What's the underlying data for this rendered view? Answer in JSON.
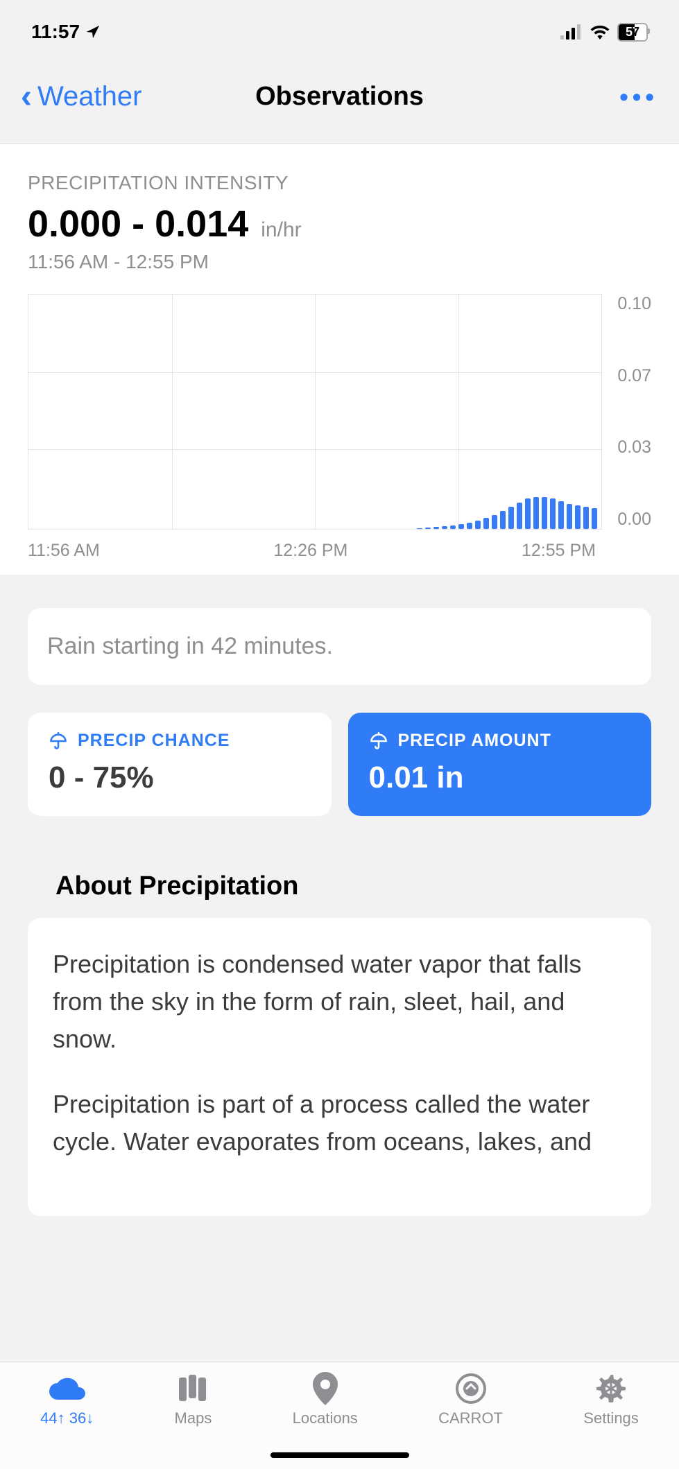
{
  "status_bar": {
    "time": "11:57",
    "battery": "57"
  },
  "nav": {
    "back_label": "Weather",
    "title": "Observations"
  },
  "chart": {
    "label": "PRECIPITATION INTENSITY",
    "value": "0.000 - 0.014",
    "unit": "in/hr",
    "time_range": "11:56 AM - 12:55 PM",
    "y_ticks": [
      "0.10",
      "0.07",
      "0.03",
      "0.00"
    ],
    "x_ticks": [
      "11:56 AM",
      "12:26 PM",
      "12:55 PM"
    ],
    "ylim": [
      0,
      0.1
    ],
    "bar_color": "#357af6",
    "grid_color": "#e5e5e5",
    "bars": [
      1,
      2,
      3,
      4,
      5,
      7,
      9,
      12,
      16,
      20,
      26,
      32,
      38,
      44,
      46,
      46,
      44,
      40,
      36,
      34,
      32,
      30
    ]
  },
  "alert": {
    "text": "Rain starting in 42 minutes."
  },
  "cards": {
    "chance": {
      "label": "PRECIP CHANCE",
      "value": "0 - 75%"
    },
    "amount": {
      "label": "PRECIP AMOUNT",
      "value": "0.01 in"
    }
  },
  "about": {
    "title": "About Precipitation",
    "p1": "Precipitation is condensed water vapor that falls from the sky in the form of rain, sleet, hail, and snow.",
    "p2": "Precipitation is part of a process called the water cycle.  Water evaporates from oceans, lakes, and"
  },
  "tabs": {
    "weather": {
      "high": "44",
      "low": "36"
    },
    "maps": "Maps",
    "locations": "Locations",
    "carrot": "CARROT",
    "settings": "Settings"
  },
  "colors": {
    "accent": "#2f7cf6",
    "muted": "#8e8e93",
    "bg": "#f2f2f2",
    "card": "#ffffff"
  }
}
